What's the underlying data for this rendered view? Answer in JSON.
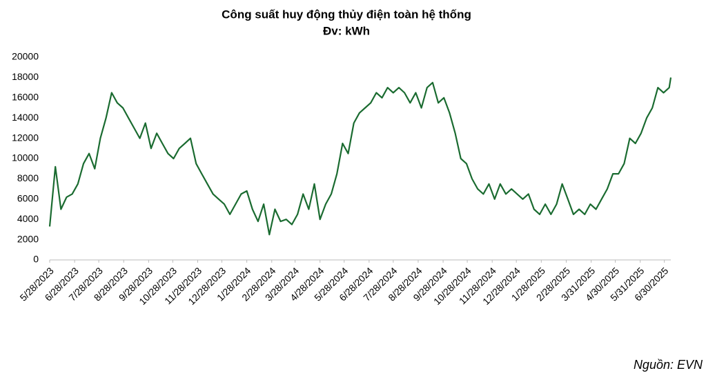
{
  "chart_data": {
    "type": "line",
    "title": "Công suất huy động thủy điện toàn hệ thống",
    "subtitle": "Đv: kWh",
    "source": "Nguồn: EVN",
    "x": [
      "5/28/2023",
      "6/4/2023",
      "6/11/2023",
      "6/18/2023",
      "6/25/2023",
      "7/2/2023",
      "7/9/2023",
      "7/16/2023",
      "7/23/2023",
      "7/30/2023",
      "8/6/2023",
      "8/13/2023",
      "8/20/2023",
      "8/27/2023",
      "9/3/2023",
      "9/10/2023",
      "9/17/2023",
      "9/24/2023",
      "10/1/2023",
      "10/8/2023",
      "10/15/2023",
      "10/22/2023",
      "10/29/2023",
      "11/5/2023",
      "11/12/2023",
      "11/19/2023",
      "11/26/2023",
      "12/3/2023",
      "12/10/2023",
      "12/17/2023",
      "12/24/2023",
      "12/31/2023",
      "1/7/2024",
      "1/14/2024",
      "1/21/2024",
      "1/28/2024",
      "2/4/2024",
      "2/11/2024",
      "2/18/2024",
      "2/25/2024",
      "3/3/2024",
      "3/10/2024",
      "3/17/2024",
      "3/24/2024",
      "3/31/2024",
      "4/7/2024",
      "4/14/2024",
      "4/21/2024",
      "4/28/2024",
      "5/5/2024",
      "5/12/2024",
      "5/19/2024",
      "5/26/2024",
      "6/2/2024",
      "6/9/2024",
      "6/16/2024",
      "6/23/2024",
      "6/30/2024",
      "7/7/2024",
      "7/14/2024",
      "7/21/2024",
      "7/28/2024",
      "8/4/2024",
      "8/11/2024",
      "8/18/2024",
      "8/25/2024",
      "9/1/2024",
      "9/8/2024",
      "9/15/2024",
      "9/22/2024",
      "9/29/2024",
      "10/6/2024",
      "10/13/2024",
      "10/20/2024",
      "10/27/2024",
      "11/3/2024",
      "11/10/2024",
      "11/17/2024",
      "11/24/2024",
      "12/1/2024",
      "12/8/2024",
      "12/15/2024",
      "12/22/2024",
      "12/29/2024",
      "1/5/2025",
      "1/12/2025",
      "1/19/2025",
      "1/26/2025",
      "2/2/2025",
      "2/9/2025",
      "2/16/2025",
      "2/23/2025",
      "3/2/2025",
      "3/9/2025",
      "3/16/2025",
      "3/23/2025",
      "3/30/2025",
      "4/6/2025",
      "4/13/2025",
      "4/20/2025",
      "4/27/2025",
      "5/4/2025",
      "5/11/2025",
      "5/18/2025",
      "5/25/2025",
      "6/1/2025",
      "6/8/2025",
      "6/15/2025",
      "6/22/2025",
      "6/29/2025",
      "7/6/2025",
      "7/8/2025"
    ],
    "series": [
      {
        "name": "Công suất",
        "color": "#1a6b30",
        "values": [
          3300,
          9200,
          5000,
          6200,
          6500,
          7500,
          9500,
          10500,
          9000,
          12000,
          14000,
          16500,
          15500,
          15000,
          14000,
          13000,
          12000,
          13500,
          11000,
          12500,
          11500,
          10500,
          10000,
          11000,
          11500,
          12000,
          9500,
          8500,
          7500,
          6500,
          6000,
          5500,
          4500,
          5500,
          6500,
          6800,
          5000,
          3800,
          5500,
          2500,
          5000,
          3800,
          4000,
          3500,
          4500,
          6500,
          5000,
          7500,
          4000,
          5500,
          6500,
          8500,
          11500,
          10500,
          13500,
          14500,
          15000,
          15500,
          16500,
          16000,
          17000,
          16500,
          17000,
          16500,
          15500,
          16500,
          15000,
          17000,
          17500,
          15500,
          16000,
          14500,
          12500,
          10000,
          9500,
          8000,
          7000,
          6500,
          7500,
          6000,
          7500,
          6500,
          7000,
          6500,
          6000,
          6500,
          5000,
          4500,
          5500,
          4500,
          5500,
          7500,
          6000,
          4500,
          5000,
          4500,
          5500,
          5000,
          6000,
          7000,
          8500,
          8500,
          9500,
          12000,
          11500,
          12500,
          14000,
          15000,
          17000,
          16500,
          17000,
          18000
        ]
      }
    ],
    "xlim": [
      "5/28/2023",
      "7/8/2025"
    ],
    "xticks": [
      "5/28/2023",
      "6/28/2023",
      "7/28/2023",
      "8/28/2023",
      "9/28/2023",
      "10/28/2023",
      "11/28/2023",
      "12/28/2023",
      "1/28/2024",
      "2/28/2024",
      "3/28/2024",
      "4/28/2024",
      "5/28/2024",
      "6/28/2024",
      "7/28/2024",
      "8/28/2024",
      "9/28/2024",
      "10/28/2024",
      "11/28/2024",
      "12/28/2024",
      "1/28/2025",
      "2/28/2025",
      "3/31/2025",
      "4/30/2025",
      "5/31/2025",
      "6/30/2025"
    ],
    "ylim": [
      0,
      20000
    ],
    "yticks": [
      0,
      2000,
      4000,
      6000,
      8000,
      10000,
      12000,
      14000,
      16000,
      18000,
      20000
    ],
    "grid": false
  }
}
